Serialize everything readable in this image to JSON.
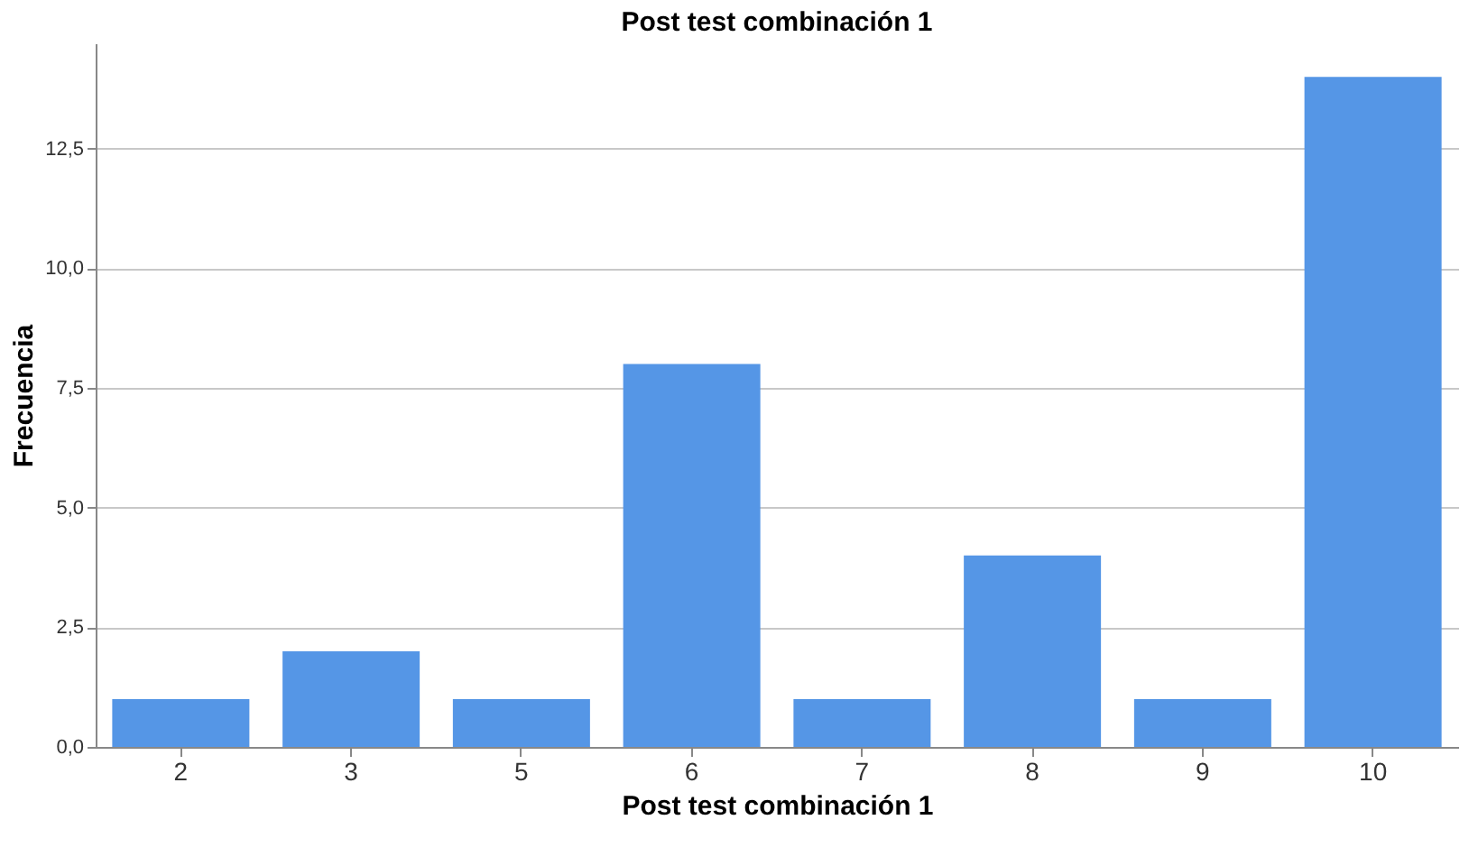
{
  "chart_data": {
    "type": "bar",
    "title": "Post test combinación 1",
    "xlabel": "Post test combinación 1",
    "ylabel": "Frecuencia",
    "categories": [
      "2",
      "3",
      "5",
      "6",
      "7",
      "8",
      "9",
      "10"
    ],
    "values": [
      1,
      2,
      1,
      8,
      1,
      4,
      1,
      14
    ],
    "color": "#5596e6",
    "ylim": [
      0,
      14.7
    ],
    "yticks": [
      {
        "value": 0,
        "label": "0,0"
      },
      {
        "value": 2.5,
        "label": "2,5"
      },
      {
        "value": 5,
        "label": "5,0"
      },
      {
        "value": 7.5,
        "label": "7,5"
      },
      {
        "value": 10,
        "label": "10,0"
      },
      {
        "value": 12.5,
        "label": "12,5"
      }
    ],
    "grid": "y"
  }
}
